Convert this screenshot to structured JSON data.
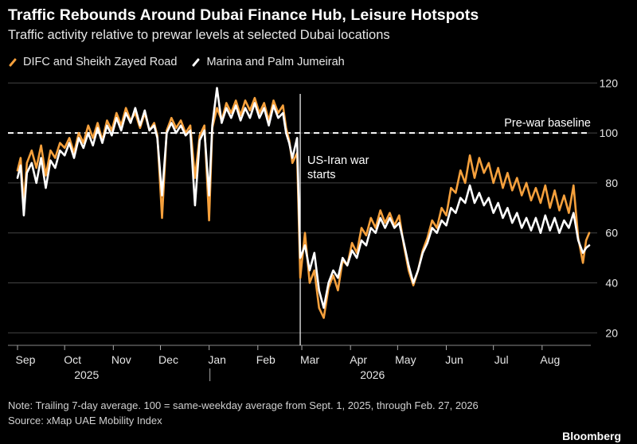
{
  "title": "Traffic Rebounds Around Dubai Finance Hub, Leisure Hotspots",
  "subtitle": "Traffic activity relative to prewar levels at selected Dubai locations",
  "note": "Note: Trailing 7-day average. 100 = same-weekday average from Sept. 1, 2025, through Feb. 27, 2026",
  "source": "Source: xMap UAE Mobility Index",
  "brand": "Bloomberg",
  "colors": {
    "background": "#000000",
    "series_orange": "#f5a03c",
    "series_white": "#ffffff",
    "grid": "#444444"
  },
  "chart_data": {
    "type": "line",
    "x_axis": {
      "type": "date",
      "range": [
        "2025-09-01",
        "2026-08-31"
      ],
      "ticks": [
        {
          "date": "2025-09-01",
          "label": "Sep"
        },
        {
          "date": "2025-10-01",
          "label": "Oct"
        },
        {
          "date": "2025-11-01",
          "label": "Nov"
        },
        {
          "date": "2025-12-01",
          "label": "Dec"
        },
        {
          "date": "2026-01-01",
          "label": "Jan"
        },
        {
          "date": "2026-02-01",
          "label": "Feb"
        },
        {
          "date": "2026-03-01",
          "label": "Mar"
        },
        {
          "date": "2026-04-01",
          "label": "Apr"
        },
        {
          "date": "2026-05-01",
          "label": "May"
        },
        {
          "date": "2026-06-01",
          "label": "Jun"
        },
        {
          "date": "2026-07-01",
          "label": "Jul"
        },
        {
          "date": "2026-08-01",
          "label": "Aug"
        }
      ],
      "year_labels": [
        {
          "date": "2025-10-15",
          "label": "2025"
        },
        {
          "date": "2026-04-15",
          "label": "2026"
        }
      ],
      "year_divider": "2026-01-01"
    },
    "y_axis": {
      "ylim": [
        15,
        122
      ],
      "ticks": [
        20,
        40,
        60,
        80,
        100,
        120
      ],
      "position": "right",
      "grid": true
    },
    "baseline": {
      "value": 100,
      "label": "Pre-war baseline"
    },
    "event": {
      "date": "2026-02-28",
      "label_lines": [
        "US-Iran war",
        "starts"
      ]
    },
    "series": [
      {
        "name": "DIFC and Sheikh Zayed Road",
        "color": "#f5a03c",
        "points": [
          [
            "2025-09-01",
            85
          ],
          [
            "2025-09-03",
            90
          ],
          [
            "2025-09-05",
            72
          ],
          [
            "2025-09-07",
            88
          ],
          [
            "2025-09-10",
            93
          ],
          [
            "2025-09-13",
            86
          ],
          [
            "2025-09-16",
            95
          ],
          [
            "2025-09-19",
            83
          ],
          [
            "2025-09-22",
            93
          ],
          [
            "2025-09-25",
            90
          ],
          [
            "2025-09-28",
            96
          ],
          [
            "2025-10-01",
            94
          ],
          [
            "2025-10-04",
            98
          ],
          [
            "2025-10-07",
            92
          ],
          [
            "2025-10-10",
            100
          ],
          [
            "2025-10-13",
            96
          ],
          [
            "2025-10-16",
            103
          ],
          [
            "2025-10-19",
            98
          ],
          [
            "2025-10-22",
            104
          ],
          [
            "2025-10-25",
            97
          ],
          [
            "2025-10-28",
            105
          ],
          [
            "2025-10-31",
            101
          ],
          [
            "2025-11-03",
            108
          ],
          [
            "2025-11-06",
            103
          ],
          [
            "2025-11-09",
            110
          ],
          [
            "2025-11-12",
            105
          ],
          [
            "2025-11-15",
            108
          ],
          [
            "2025-11-18",
            102
          ],
          [
            "2025-11-21",
            108
          ],
          [
            "2025-11-24",
            101
          ],
          [
            "2025-11-27",
            104
          ],
          [
            "2025-11-29",
            99
          ],
          [
            "2025-12-02",
            66
          ],
          [
            "2025-12-05",
            101
          ],
          [
            "2025-12-08",
            106
          ],
          [
            "2025-12-11",
            102
          ],
          [
            "2025-12-14",
            105
          ],
          [
            "2025-12-17",
            100
          ],
          [
            "2025-12-20",
            103
          ],
          [
            "2025-12-23",
            82
          ],
          [
            "2025-12-26",
            99
          ],
          [
            "2025-12-29",
            103
          ],
          [
            "2026-01-01",
            65
          ],
          [
            "2026-01-03",
            102
          ],
          [
            "2026-01-06",
            110
          ],
          [
            "2026-01-09",
            105
          ],
          [
            "2026-01-12",
            112
          ],
          [
            "2026-01-15",
            108
          ],
          [
            "2026-01-18",
            113
          ],
          [
            "2026-01-21",
            107
          ],
          [
            "2026-01-24",
            113
          ],
          [
            "2026-01-27",
            109
          ],
          [
            "2026-01-30",
            114
          ],
          [
            "2026-02-02",
            108
          ],
          [
            "2026-02-05",
            112
          ],
          [
            "2026-02-08",
            105
          ],
          [
            "2026-02-11",
            113
          ],
          [
            "2026-02-14",
            108
          ],
          [
            "2026-02-17",
            111
          ],
          [
            "2026-02-19",
            102
          ],
          [
            "2026-02-21",
            97
          ],
          [
            "2026-02-23",
            88
          ],
          [
            "2026-02-26",
            92
          ],
          [
            "2026-02-28",
            42
          ],
          [
            "2026-03-03",
            60
          ],
          [
            "2026-03-06",
            40
          ],
          [
            "2026-03-09",
            45
          ],
          [
            "2026-03-12",
            30
          ],
          [
            "2026-03-15",
            26
          ],
          [
            "2026-03-18",
            38
          ],
          [
            "2026-03-21",
            43
          ],
          [
            "2026-03-24",
            37
          ],
          [
            "2026-03-27",
            49
          ],
          [
            "2026-03-30",
            47
          ],
          [
            "2026-04-02",
            56
          ],
          [
            "2026-04-05",
            52
          ],
          [
            "2026-04-08",
            62
          ],
          [
            "2026-04-11",
            59
          ],
          [
            "2026-04-14",
            66
          ],
          [
            "2026-04-17",
            62
          ],
          [
            "2026-04-20",
            69
          ],
          [
            "2026-04-23",
            64
          ],
          [
            "2026-04-26",
            68
          ],
          [
            "2026-04-29",
            63
          ],
          [
            "2026-05-02",
            67
          ],
          [
            "2026-05-05",
            55
          ],
          [
            "2026-05-08",
            45
          ],
          [
            "2026-05-11",
            39
          ],
          [
            "2026-05-14",
            45
          ],
          [
            "2026-05-17",
            53
          ],
          [
            "2026-05-20",
            58
          ],
          [
            "2026-05-23",
            65
          ],
          [
            "2026-05-26",
            62
          ],
          [
            "2026-05-29",
            70
          ],
          [
            "2026-06-01",
            67
          ],
          [
            "2026-06-04",
            78
          ],
          [
            "2026-06-07",
            76
          ],
          [
            "2026-06-10",
            85
          ],
          [
            "2026-06-13",
            80
          ],
          [
            "2026-06-16",
            91
          ],
          [
            "2026-06-19",
            82
          ],
          [
            "2026-06-22",
            90
          ],
          [
            "2026-06-25",
            84
          ],
          [
            "2026-06-28",
            88
          ],
          [
            "2026-07-01",
            80
          ],
          [
            "2026-07-04",
            86
          ],
          [
            "2026-07-07",
            78
          ],
          [
            "2026-07-10",
            84
          ],
          [
            "2026-07-13",
            77
          ],
          [
            "2026-07-16",
            82
          ],
          [
            "2026-07-19",
            75
          ],
          [
            "2026-07-22",
            80
          ],
          [
            "2026-07-25",
            73
          ],
          [
            "2026-07-28",
            78
          ],
          [
            "2026-07-31",
            72
          ],
          [
            "2026-08-03",
            79
          ],
          [
            "2026-08-06",
            70
          ],
          [
            "2026-08-09",
            77
          ],
          [
            "2026-08-12",
            69
          ],
          [
            "2026-08-15",
            75
          ],
          [
            "2026-08-18",
            68
          ],
          [
            "2026-08-21",
            79
          ],
          [
            "2026-08-24",
            58
          ],
          [
            "2026-08-27",
            48
          ],
          [
            "2026-08-29",
            57
          ],
          [
            "2026-08-31",
            60
          ]
        ]
      },
      {
        "name": "Marina and Palm Jumeirah",
        "color": "#ffffff",
        "points": [
          [
            "2025-09-01",
            82
          ],
          [
            "2025-09-03",
            87
          ],
          [
            "2025-09-05",
            67
          ],
          [
            "2025-09-07",
            84
          ],
          [
            "2025-09-10",
            88
          ],
          [
            "2025-09-13",
            80
          ],
          [
            "2025-09-16",
            90
          ],
          [
            "2025-09-19",
            78
          ],
          [
            "2025-09-22",
            89
          ],
          [
            "2025-09-25",
            86
          ],
          [
            "2025-09-28",
            93
          ],
          [
            "2025-10-01",
            91
          ],
          [
            "2025-10-04",
            96
          ],
          [
            "2025-10-07",
            90
          ],
          [
            "2025-10-10",
            98
          ],
          [
            "2025-10-13",
            94
          ],
          [
            "2025-10-16",
            100
          ],
          [
            "2025-10-19",
            95
          ],
          [
            "2025-10-22",
            102
          ],
          [
            "2025-10-25",
            96
          ],
          [
            "2025-10-28",
            103
          ],
          [
            "2025-10-31",
            99
          ],
          [
            "2025-11-03",
            106
          ],
          [
            "2025-11-06",
            101
          ],
          [
            "2025-11-09",
            108
          ],
          [
            "2025-11-12",
            104
          ],
          [
            "2025-11-15",
            110
          ],
          [
            "2025-11-18",
            103
          ],
          [
            "2025-11-21",
            109
          ],
          [
            "2025-11-24",
            101
          ],
          [
            "2025-11-27",
            103
          ],
          [
            "2025-11-29",
            98
          ],
          [
            "2025-12-02",
            75
          ],
          [
            "2025-12-05",
            100
          ],
          [
            "2025-12-08",
            104
          ],
          [
            "2025-12-11",
            100
          ],
          [
            "2025-12-14",
            103
          ],
          [
            "2025-12-17",
            99
          ],
          [
            "2025-12-20",
            101
          ],
          [
            "2025-12-23",
            71
          ],
          [
            "2025-12-26",
            97
          ],
          [
            "2025-12-29",
            101
          ],
          [
            "2026-01-01",
            75
          ],
          [
            "2026-01-03",
            103
          ],
          [
            "2026-01-06",
            118
          ],
          [
            "2026-01-09",
            104
          ],
          [
            "2026-01-12",
            110
          ],
          [
            "2026-01-15",
            106
          ],
          [
            "2026-01-18",
            111
          ],
          [
            "2026-01-21",
            105
          ],
          [
            "2026-01-24",
            110
          ],
          [
            "2026-01-27",
            106
          ],
          [
            "2026-01-30",
            112
          ],
          [
            "2026-02-02",
            106
          ],
          [
            "2026-02-05",
            110
          ],
          [
            "2026-02-08",
            103
          ],
          [
            "2026-02-11",
            111
          ],
          [
            "2026-02-14",
            106
          ],
          [
            "2026-02-17",
            108
          ],
          [
            "2026-02-19",
            100
          ],
          [
            "2026-02-21",
            96
          ],
          [
            "2026-02-23",
            90
          ],
          [
            "2026-02-26",
            98
          ],
          [
            "2026-02-28",
            50
          ],
          [
            "2026-03-03",
            55
          ],
          [
            "2026-03-06",
            45
          ],
          [
            "2026-03-09",
            52
          ],
          [
            "2026-03-12",
            37
          ],
          [
            "2026-03-15",
            30
          ],
          [
            "2026-03-18",
            40
          ],
          [
            "2026-03-21",
            45
          ],
          [
            "2026-03-24",
            42
          ],
          [
            "2026-03-27",
            50
          ],
          [
            "2026-03-30",
            47
          ],
          [
            "2026-04-02",
            53
          ],
          [
            "2026-04-05",
            50
          ],
          [
            "2026-04-08",
            57
          ],
          [
            "2026-04-11",
            55
          ],
          [
            "2026-04-14",
            62
          ],
          [
            "2026-04-17",
            60
          ],
          [
            "2026-04-20",
            66
          ],
          [
            "2026-04-23",
            62
          ],
          [
            "2026-04-26",
            66
          ],
          [
            "2026-04-29",
            62
          ],
          [
            "2026-05-02",
            64
          ],
          [
            "2026-05-05",
            56
          ],
          [
            "2026-05-08",
            47
          ],
          [
            "2026-05-11",
            40
          ],
          [
            "2026-05-14",
            45
          ],
          [
            "2026-05-17",
            52
          ],
          [
            "2026-05-20",
            56
          ],
          [
            "2026-05-23",
            62
          ],
          [
            "2026-05-26",
            60
          ],
          [
            "2026-05-29",
            65
          ],
          [
            "2026-06-01",
            63
          ],
          [
            "2026-06-04",
            70
          ],
          [
            "2026-06-07",
            68
          ],
          [
            "2026-06-10",
            74
          ],
          [
            "2026-06-13",
            72
          ],
          [
            "2026-06-16",
            79
          ],
          [
            "2026-06-19",
            72
          ],
          [
            "2026-06-22",
            76
          ],
          [
            "2026-06-25",
            71
          ],
          [
            "2026-06-28",
            74
          ],
          [
            "2026-07-01",
            68
          ],
          [
            "2026-07-04",
            72
          ],
          [
            "2026-07-07",
            66
          ],
          [
            "2026-07-10",
            70
          ],
          [
            "2026-07-13",
            64
          ],
          [
            "2026-07-16",
            68
          ],
          [
            "2026-07-19",
            62
          ],
          [
            "2026-07-22",
            66
          ],
          [
            "2026-07-25",
            61
          ],
          [
            "2026-07-28",
            66
          ],
          [
            "2026-07-31",
            60
          ],
          [
            "2026-08-03",
            67
          ],
          [
            "2026-08-06",
            61
          ],
          [
            "2026-08-09",
            66
          ],
          [
            "2026-08-12",
            60
          ],
          [
            "2026-08-15",
            65
          ],
          [
            "2026-08-18",
            62
          ],
          [
            "2026-08-21",
            68
          ],
          [
            "2026-08-24",
            57
          ],
          [
            "2026-08-27",
            52
          ],
          [
            "2026-08-29",
            54
          ],
          [
            "2026-08-31",
            55
          ]
        ]
      }
    ]
  }
}
